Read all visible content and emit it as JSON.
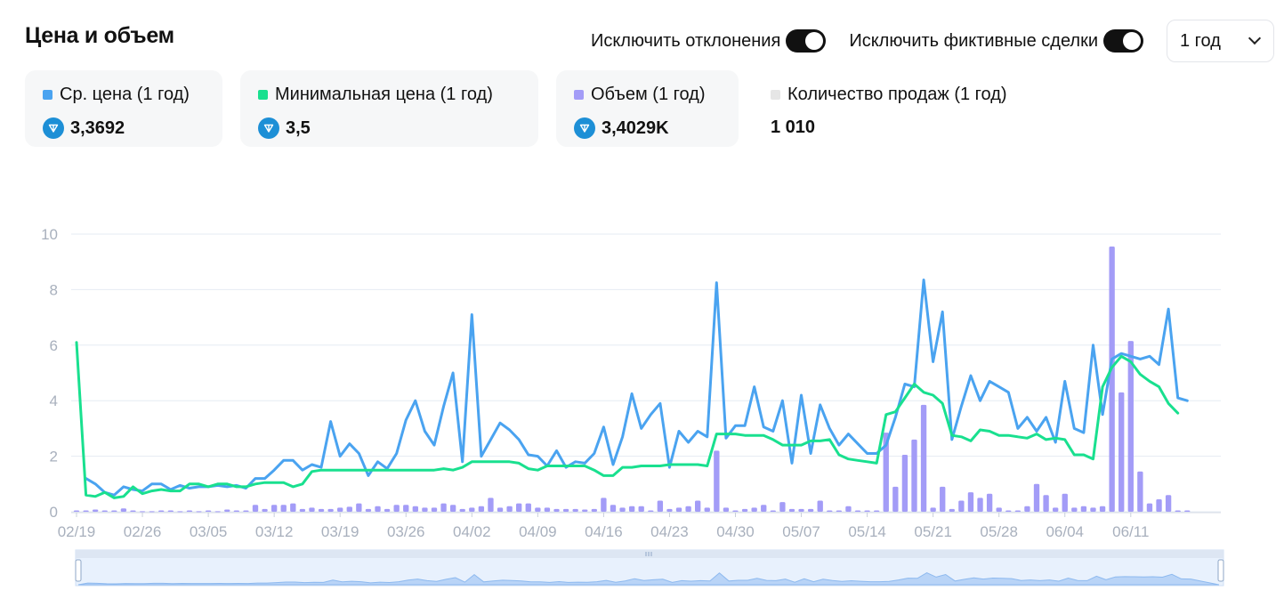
{
  "header": {
    "title": "Цена и объем"
  },
  "controls": {
    "exclude_outliers_label": "Исключить отклонения",
    "exclude_outliers_on": true,
    "exclude_fake_label": "Исключить фиктивные сделки",
    "exclude_fake_on": true,
    "period_value": "1 год"
  },
  "stats": [
    {
      "label": "Ср. цена (1 год)",
      "value": "3,3692",
      "color": "#4aa3f0",
      "has_ton_icon": true
    },
    {
      "label": "Минимальная цена (1 год)",
      "value": "3,5",
      "color": "#19e08f",
      "has_ton_icon": true
    },
    {
      "label": "Объем (1 год)",
      "value": "3,4029K",
      "color": "#a39cf7",
      "has_ton_icon": true
    },
    {
      "label": "Количество продаж (1 год)",
      "value": "1 010",
      "color": "#e6e6e6",
      "has_ton_icon": false
    }
  ],
  "colors": {
    "avg": "#4aa3f0",
    "min": "#19e08f",
    "volume": "#a39cf7",
    "grid": "#e5ebf3",
    "tick": "#a8b0bd"
  },
  "chart_data": {
    "type": "line",
    "yticks": [
      "0",
      "2",
      "4",
      "6",
      "8",
      "10"
    ],
    "ylim": [
      0,
      10
    ],
    "x_tick_labels": [
      "02/19",
      "02/26",
      "03/05",
      "03/12",
      "03/19",
      "03/26",
      "04/02",
      "04/09",
      "04/16",
      "04/23",
      "04/30",
      "05/07",
      "05/14",
      "05/21",
      "05/28",
      "06/04",
      "06/11"
    ],
    "days": 122,
    "series": [
      {
        "name": "Ср. цена (1 год)",
        "color": "#4aa3f0",
        "values": [
          null,
          1.2,
          1,
          0.7,
          0.6,
          0.9,
          0.8,
          0.75,
          1,
          1,
          0.8,
          0.95,
          0.85,
          0.9,
          0.9,
          0.95,
          0.9,
          0.95,
          0.85,
          1.2,
          1.2,
          1.5,
          1.85,
          1.85,
          1.5,
          1.7,
          1.6,
          3.25,
          2,
          2.45,
          2.1,
          1.3,
          1.8,
          1.55,
          2.1,
          3.3,
          4,
          2.9,
          2.4,
          3.8,
          5,
          1.8,
          7.1,
          2,
          2.6,
          3.2,
          2.95,
          2.6,
          2.05,
          2,
          1.65,
          2.2,
          1.6,
          1.8,
          1.75,
          2.1,
          3.05,
          1.7,
          2.7,
          4.25,
          3,
          3.5,
          3.9,
          1.6,
          2.9,
          2.5,
          2.9,
          2.7,
          8.25,
          2.65,
          3.1,
          3.1,
          4.5,
          3.05,
          2.9,
          4,
          1.75,
          4.2,
          2.1,
          3.85,
          3,
          2.4,
          2.8,
          2.45,
          2.1,
          2.1,
          2.4,
          3.4,
          4.6,
          4.5,
          8.35,
          5.4,
          7.2,
          2.6,
          3.8,
          4.9,
          4,
          4.7,
          4.5,
          4.3,
          3,
          3.4,
          2.9,
          3.4,
          2.5,
          4.7,
          3,
          2.85,
          6,
          3.5,
          5.5,
          5.7,
          5.6,
          5.5,
          5.6,
          5.3,
          7.3,
          4.1,
          4
        ]
      },
      {
        "name": "Минимальная цена (1 год)",
        "color": "#19e08f",
        "values": [
          6.1,
          0.6,
          0.55,
          0.7,
          0.5,
          0.55,
          0.9,
          0.65,
          0.75,
          0.8,
          0.75,
          0.75,
          1,
          1,
          0.9,
          1,
          1,
          0.9,
          0.9,
          1,
          1.05,
          1.05,
          1.05,
          0.9,
          1,
          1.45,
          1.5,
          1.5,
          1.5,
          1.5,
          1.5,
          1.5,
          1.5,
          1.5,
          1.5,
          1.5,
          1.5,
          1.5,
          1.5,
          1.55,
          1.5,
          1.6,
          1.8,
          1.8,
          1.8,
          1.8,
          1.8,
          1.75,
          1.55,
          1.5,
          1.65,
          1.65,
          1.65,
          1.65,
          1.65,
          1.5,
          1.3,
          1.3,
          1.6,
          1.6,
          1.65,
          1.65,
          1.65,
          1.7,
          1.7,
          1.7,
          1.7,
          1.65,
          2.8,
          2.8,
          2.8,
          2.75,
          2.75,
          2.75,
          2.6,
          2.4,
          2.4,
          2.4,
          2.55,
          2.55,
          2.6,
          2.05,
          1.9,
          1.85,
          1.8,
          1.75,
          3.5,
          3.6,
          4.1,
          4.6,
          4.3,
          4.2,
          3.9,
          2.75,
          2.7,
          2.55,
          2.95,
          2.9,
          2.75,
          2.75,
          2.7,
          2.65,
          2.8,
          2.6,
          2.65,
          2.6,
          2.05,
          2.05,
          1.9,
          4.5,
          5.2,
          5.6,
          5.4,
          4.95,
          4.7,
          4.5,
          3.9,
          3.55
        ]
      }
    ],
    "volume": {
      "name": "Объем (1 год)",
      "color": "#a39cf7",
      "values": [
        0.05,
        0.05,
        0.08,
        0.05,
        0.05,
        0.12,
        0.05,
        0.02,
        0.02,
        0.05,
        0.05,
        0.02,
        0.05,
        0.02,
        0.05,
        0.02,
        0.08,
        0.05,
        0.05,
        0.25,
        0.1,
        0.25,
        0.25,
        0.3,
        0.1,
        0.15,
        0.1,
        0.1,
        0.15,
        0.18,
        0.3,
        0.1,
        0.2,
        0.1,
        0.25,
        0.25,
        0.2,
        0.15,
        0.15,
        0.3,
        0.25,
        0.1,
        0.15,
        0.2,
        0.5,
        0.15,
        0.2,
        0.3,
        0.3,
        0.15,
        0.15,
        0.1,
        0.1,
        0.1,
        0.08,
        0.1,
        0.5,
        0.25,
        0.15,
        0.2,
        0.2,
        0.05,
        0.4,
        0.1,
        0.15,
        0.2,
        0.4,
        0.15,
        2.2,
        0.15,
        0.05,
        0.1,
        0.15,
        0.25,
        0.05,
        0.35,
        0.1,
        0.1,
        0.1,
        0.4,
        0.05,
        0.05,
        0.2,
        0.05,
        0.05,
        0.05,
        2.85,
        0.9,
        2.05,
        2.6,
        3.85,
        0.15,
        0.9,
        0.1,
        0.4,
        0.7,
        0.5,
        0.65,
        0.15,
        0.05,
        0.05,
        0.2,
        1,
        0.6,
        0.15,
        0.65,
        0.15,
        0.2,
        0.15,
        0.2,
        9.55,
        4.3,
        6.15,
        1.45,
        0.3,
        0.45,
        0.6,
        0.05,
        0.05
      ]
    }
  }
}
